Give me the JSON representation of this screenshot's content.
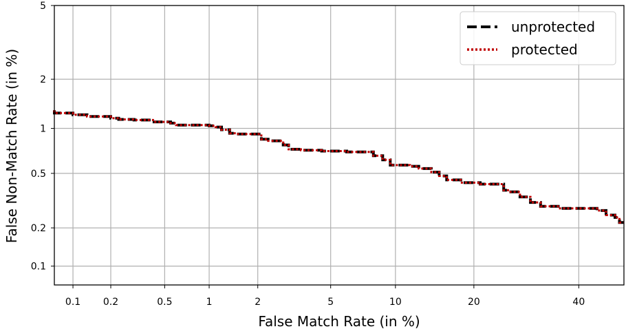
{
  "chart_data": {
    "type": "line",
    "title": "",
    "xlabel": "False Match Rate (in %)",
    "ylabel": "False Non-Match Rate (in %)",
    "xscale": "probit",
    "yscale": "probit",
    "xlim": [
      0.07,
      50
    ],
    "ylim": [
      0.07,
      5
    ],
    "xticks": [
      0.1,
      0.2,
      0.5,
      1,
      2,
      5,
      10,
      20,
      40
    ],
    "xtick_labels": [
      "0.1",
      "0.2",
      "0.5",
      "1",
      "2",
      "5",
      "10",
      "20",
      "40"
    ],
    "yticks": [
      0.1,
      0.2,
      0.5,
      1,
      2,
      5
    ],
    "ytick_labels": [
      "0.1",
      "0.2",
      "0.5",
      "1",
      "2",
      "5"
    ],
    "grid": true,
    "legend_position": "top-right",
    "series": [
      {
        "name": "unprotected",
        "style": "dashed",
        "color": "#000000",
        "x": [
          0.07,
          0.08,
          0.1,
          0.13,
          0.15,
          0.2,
          0.23,
          0.3,
          0.42,
          0.48,
          0.55,
          0.6,
          0.65,
          1.0,
          1.1,
          1.2,
          1.35,
          1.5,
          2.1,
          2.3,
          2.8,
          3.0,
          3.5,
          4.5,
          5.0,
          6.0,
          8.0,
          8.8,
          9.5,
          10.2,
          11.5,
          12.5,
          14.0,
          15.0,
          16.0,
          18.0,
          21.0,
          25.0,
          26.0,
          28.0,
          30.0,
          32.0,
          36.0,
          38.0,
          44.0,
          46.0,
          48.0,
          49.0,
          50.0
        ],
        "y": [
          1.3,
          1.25,
          1.25,
          1.22,
          1.19,
          1.19,
          1.16,
          1.14,
          1.13,
          1.1,
          1.1,
          1.08,
          1.05,
          1.05,
          1.04,
          1.02,
          0.98,
          0.93,
          0.92,
          0.85,
          0.83,
          0.78,
          0.73,
          0.72,
          0.71,
          0.71,
          0.7,
          0.66,
          0.62,
          0.57,
          0.57,
          0.56,
          0.54,
          0.51,
          0.48,
          0.45,
          0.43,
          0.42,
          0.38,
          0.37,
          0.34,
          0.31,
          0.29,
          0.28,
          0.28,
          0.27,
          0.25,
          0.24,
          0.22
        ]
      },
      {
        "name": "protected",
        "style": "dotted",
        "color": "#c00000",
        "x": [
          0.07,
          0.08,
          0.1,
          0.13,
          0.15,
          0.2,
          0.23,
          0.3,
          0.42,
          0.48,
          0.55,
          0.6,
          0.65,
          1.0,
          1.1,
          1.2,
          1.35,
          1.5,
          2.1,
          2.3,
          2.8,
          3.0,
          3.5,
          4.5,
          5.0,
          6.0,
          8.0,
          8.8,
          9.5,
          10.2,
          11.5,
          12.5,
          14.0,
          15.0,
          16.0,
          18.0,
          21.0,
          25.0,
          26.0,
          28.0,
          30.0,
          32.0,
          36.0,
          38.0,
          44.0,
          46.0,
          48.0,
          49.0,
          50.0
        ],
        "y": [
          1.3,
          1.25,
          1.25,
          1.22,
          1.19,
          1.19,
          1.16,
          1.14,
          1.13,
          1.1,
          1.1,
          1.08,
          1.05,
          1.05,
          1.04,
          1.02,
          0.98,
          0.93,
          0.92,
          0.85,
          0.83,
          0.78,
          0.73,
          0.72,
          0.71,
          0.71,
          0.7,
          0.66,
          0.62,
          0.57,
          0.57,
          0.56,
          0.54,
          0.51,
          0.48,
          0.45,
          0.43,
          0.42,
          0.38,
          0.37,
          0.34,
          0.31,
          0.29,
          0.28,
          0.28,
          0.27,
          0.25,
          0.24,
          0.22
        ]
      }
    ]
  }
}
